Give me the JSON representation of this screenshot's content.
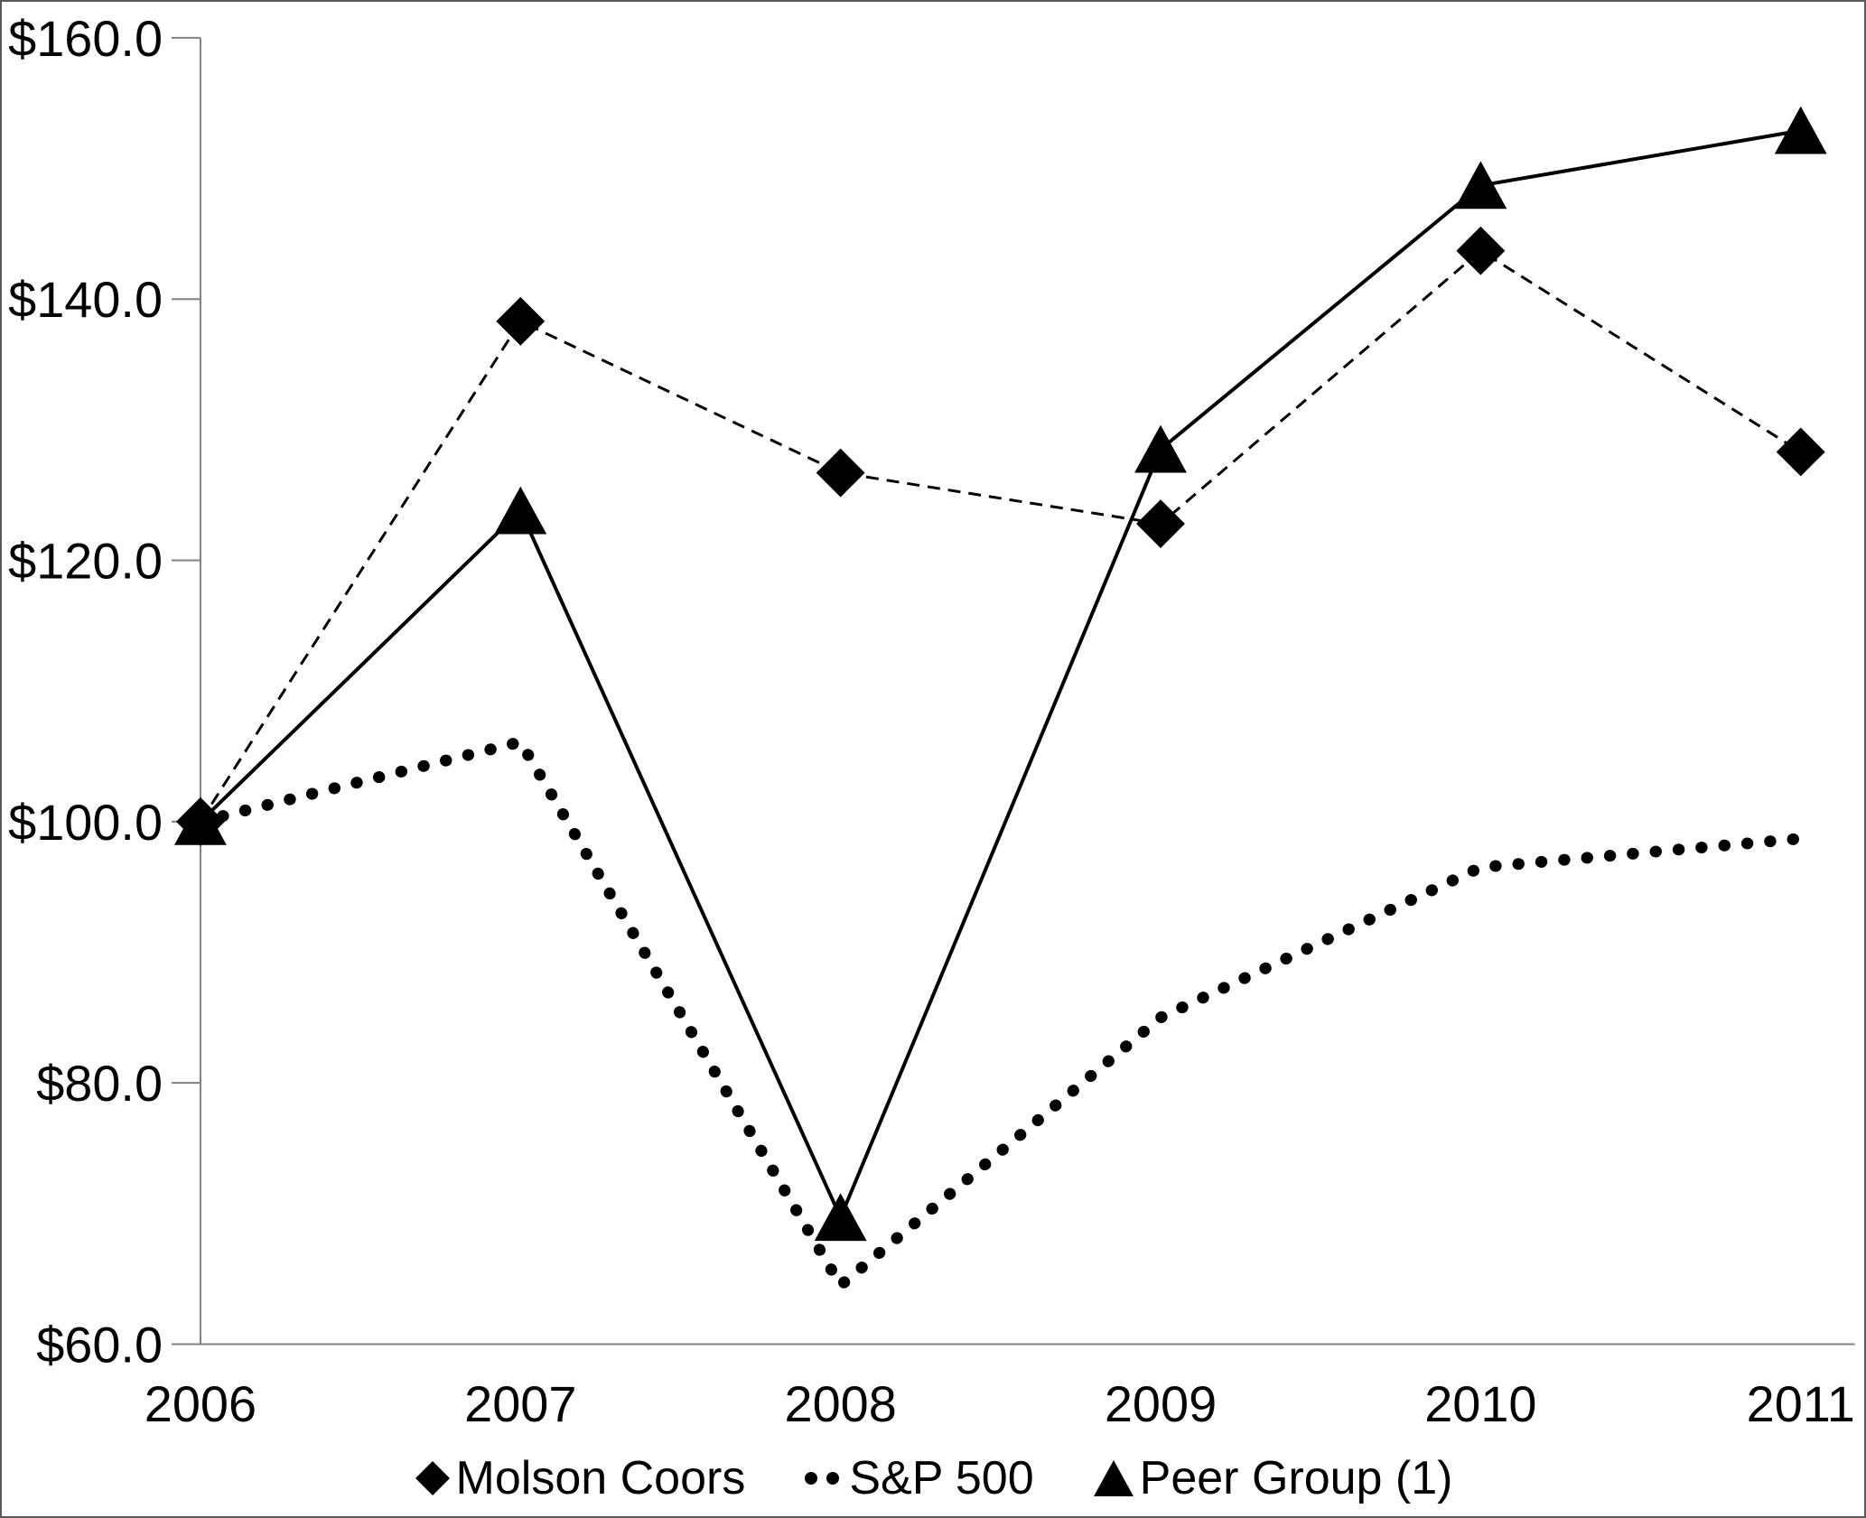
{
  "chart_data": {
    "type": "line",
    "title": "",
    "categories": [
      "2006",
      "2007",
      "2008",
      "2009",
      "2010",
      "2011"
    ],
    "y_axis": {
      "min": 60,
      "max": 160,
      "ticks": [
        {
          "value": 160,
          "label": "$160.0"
        },
        {
          "value": 140,
          "label": "$140.0"
        },
        {
          "value": 120,
          "label": "$120.0"
        },
        {
          "value": 100,
          "label": "$100.0"
        },
        {
          "value": 80,
          "label": "$80.0"
        },
        {
          "value": 60,
          "label": "$60.0"
        }
      ]
    },
    "series": [
      {
        "name": "Molson Coors",
        "marker": "diamond",
        "line": "dashed",
        "values": [
          100.0,
          138.3,
          126.7,
          122.8,
          143.7,
          128.3
        ]
      },
      {
        "name": "S&P 500",
        "marker": "none",
        "line": "dotted",
        "values": [
          100.0,
          106.1,
          64.5,
          85.0,
          96.5,
          98.7
        ]
      },
      {
        "name": "Peer Group (1)",
        "marker": "triangle",
        "line": "solid",
        "values": [
          100.0,
          123.8,
          69.7,
          128.5,
          148.7,
          152.9
        ]
      }
    ],
    "legend_position": "bottom",
    "grid": false,
    "colors": {
      "series": "#000000",
      "axis": "#808080",
      "text": "#000000",
      "background": "#ffffff"
    }
  }
}
